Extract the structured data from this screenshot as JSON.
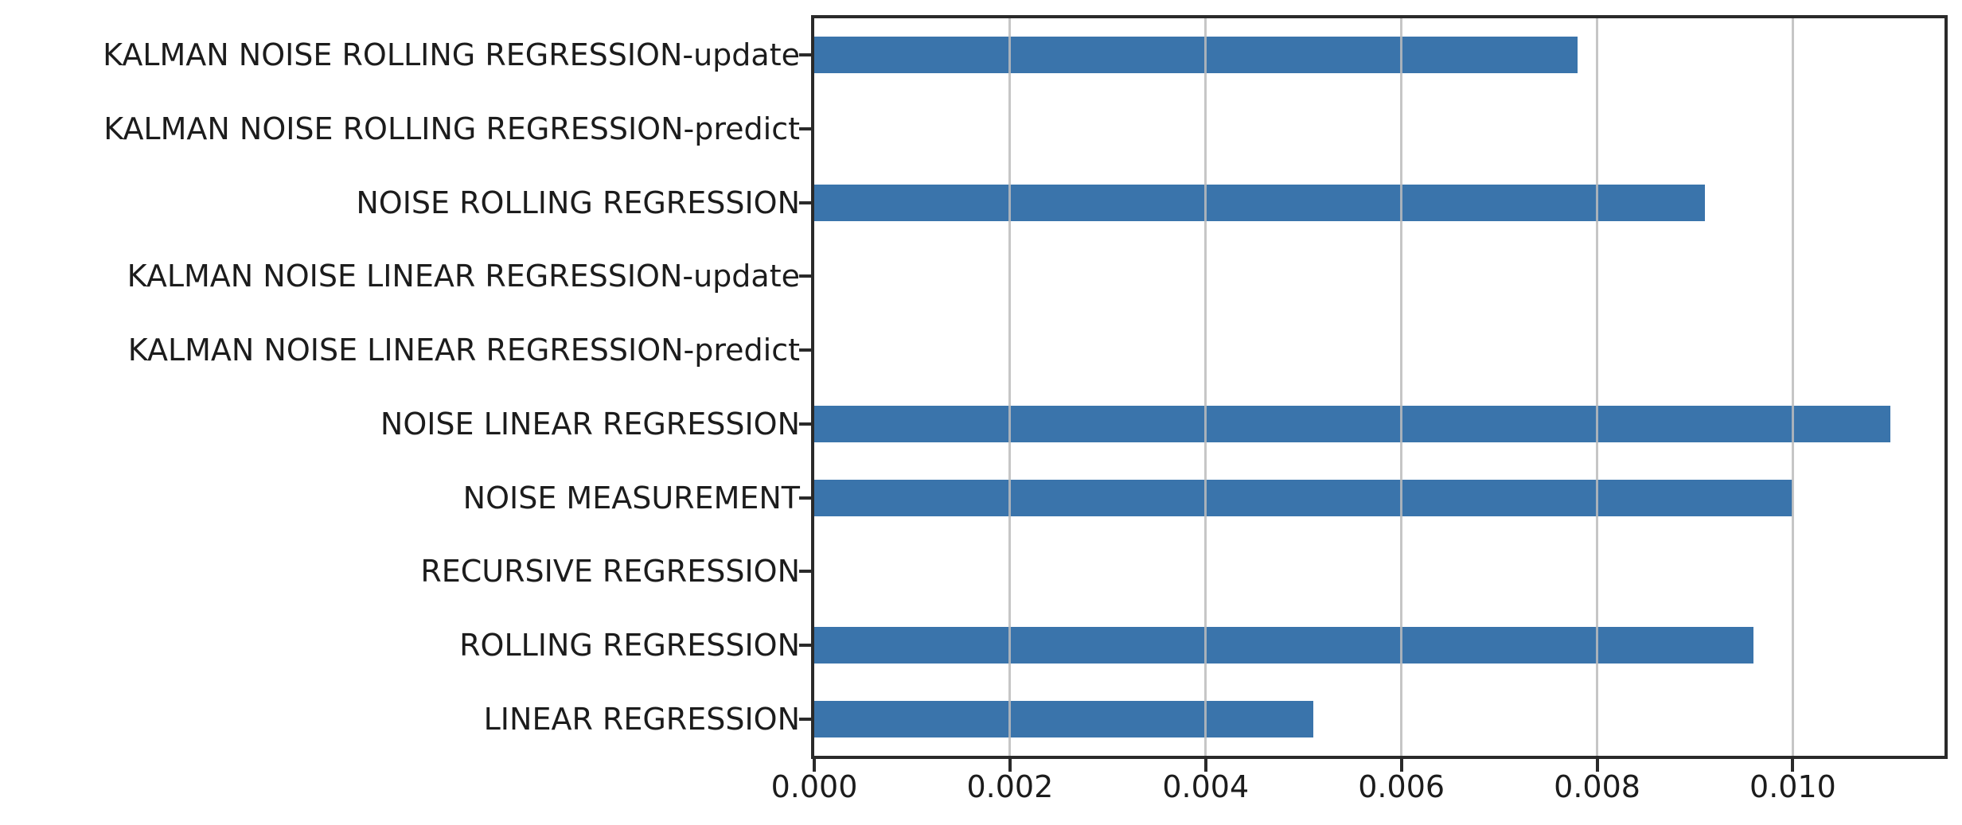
{
  "figure": {
    "background": "#ffffff",
    "bar_color": "#3a74ab",
    "grid_color": "#bcbcbc",
    "spine_color": "#2a2a2a",
    "text_color": "#1c1c1c"
  },
  "chart_data": {
    "type": "bar",
    "orientation": "horizontal",
    "title": "",
    "xlabel": "",
    "ylabel": "",
    "legend": "none",
    "grid": "vertical gridlines at x ticks, drawn over bars",
    "categories": [
      "KALMAN NOISE ROLLING REGRESSION-update",
      "KALMAN NOISE ROLLING REGRESSION-predict",
      "NOISE ROLLING REGRESSION",
      "KALMAN NOISE LINEAR REGRESSION-update",
      "KALMAN NOISE LINEAR REGRESSION-predict",
      "NOISE LINEAR REGRESSION",
      "NOISE MEASUREMENT",
      "RECURSIVE REGRESSION",
      "ROLLING REGRESSION",
      "LINEAR REGRESSION"
    ],
    "values": [
      0.0078,
      0.0,
      0.0091,
      0.0,
      0.0,
      0.011,
      0.01,
      0.0,
      0.0096,
      0.0051
    ],
    "xtick_values": [
      0.0,
      0.002,
      0.004,
      0.006,
      0.008,
      0.01
    ],
    "xtick_labels": [
      "0.000",
      "0.002",
      "0.004",
      "0.006",
      "0.008",
      "0.010"
    ],
    "xlim": [
      0,
      0.01155
    ]
  }
}
